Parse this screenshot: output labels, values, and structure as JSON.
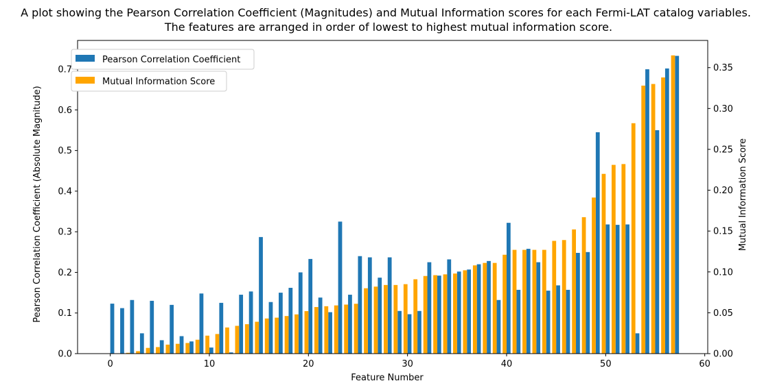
{
  "chart_data": {
    "type": "bar",
    "title": [
      "A plot showing the Pearson Correlation Coefficient (Magnitudes) and Mutual Information scores for each Fermi-LAT catalog variables.",
      "The features are arranged in order of lowest to highest mutual information score."
    ],
    "xlabel": "Feature Number",
    "ylabel": "Pearson Correlation Coefficient (Absolute Magnitude)",
    "y2label": "Mutual Information Score",
    "xlim": [
      -3.3,
      60.3
    ],
    "ylim": [
      0,
      0.771
    ],
    "y2lim": [
      0,
      0.3833
    ],
    "xticks": [
      0,
      10,
      20,
      30,
      40,
      50,
      60
    ],
    "yticks": [
      0.0,
      0.1,
      0.2,
      0.3,
      0.4,
      0.5,
      0.6,
      0.7
    ],
    "y2ticks": [
      0.0,
      0.05,
      0.1,
      0.15,
      0.2,
      0.25,
      0.3,
      0.35
    ],
    "grid": false,
    "legend_placement": "top-left",
    "x": [
      0,
      1,
      2,
      3,
      4,
      5,
      6,
      7,
      8,
      9,
      10,
      11,
      12,
      13,
      14,
      15,
      16,
      17,
      18,
      19,
      20,
      21,
      22,
      23,
      24,
      25,
      26,
      27,
      28,
      29,
      30,
      31,
      32,
      33,
      34,
      35,
      36,
      37,
      38,
      39,
      40,
      41,
      42,
      43,
      44,
      45,
      46,
      47,
      48,
      49,
      50,
      51,
      52,
      53,
      54,
      55,
      56,
      57
    ],
    "series": [
      {
        "name": "Pearson Correlation Coefficient",
        "axis": "left",
        "color": "#1f77b4",
        "values": [
          0.123,
          0.112,
          0.132,
          0.05,
          0.13,
          0.033,
          0.12,
          0.043,
          0.03,
          0.148,
          0.015,
          0.125,
          0.003,
          0.145,
          0.153,
          0.287,
          0.127,
          0.15,
          0.162,
          0.2,
          0.233,
          0.138,
          0.102,
          0.325,
          0.145,
          0.24,
          0.237,
          0.187,
          0.237,
          0.105,
          0.097,
          0.105,
          0.225,
          0.192,
          0.232,
          0.202,
          0.207,
          0.22,
          0.228,
          0.132,
          0.322,
          0.157,
          0.258,
          0.225,
          0.155,
          0.168,
          0.157,
          0.248,
          0.25,
          0.545,
          0.318,
          0.317,
          0.318,
          0.05,
          0.7,
          0.55,
          0.702,
          0.733
        ]
      },
      {
        "name": "Mutual Information Score",
        "axis": "right",
        "color": "#ffa500",
        "values": [
          0.0,
          0.0,
          0.001,
          0.003,
          0.007,
          0.008,
          0.011,
          0.012,
          0.013,
          0.017,
          0.022,
          0.024,
          0.032,
          0.034,
          0.036,
          0.039,
          0.043,
          0.044,
          0.046,
          0.048,
          0.052,
          0.057,
          0.058,
          0.059,
          0.06,
          0.061,
          0.08,
          0.082,
          0.084,
          0.084,
          0.085,
          0.091,
          0.095,
          0.096,
          0.097,
          0.098,
          0.102,
          0.108,
          0.111,
          0.111,
          0.121,
          0.127,
          0.127,
          0.127,
          0.127,
          0.138,
          0.139,
          0.152,
          0.167,
          0.191,
          0.22,
          0.231,
          0.232,
          0.282,
          0.328,
          0.33,
          0.338,
          0.365
        ]
      }
    ]
  }
}
